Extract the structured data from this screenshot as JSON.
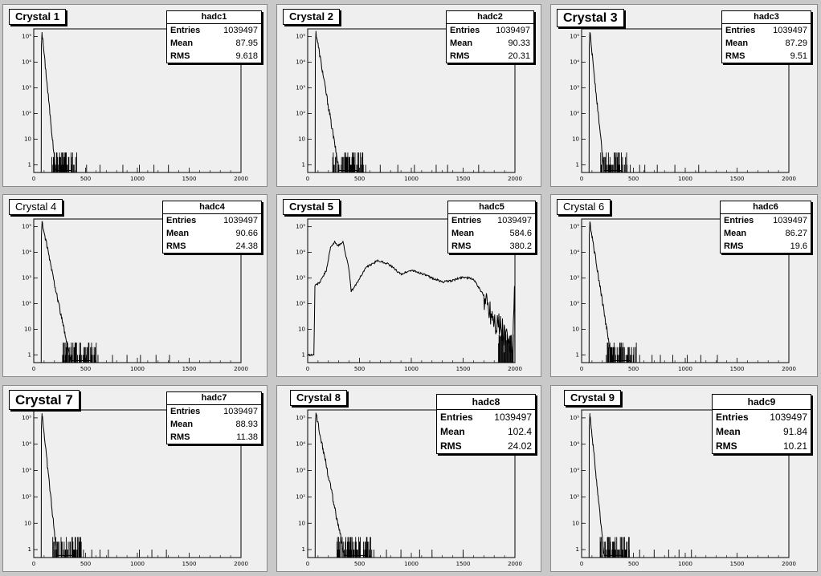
{
  "chart_data": [
    {
      "type": "histogram",
      "title": "Crystal 1",
      "stats": {
        "name": "hadc1",
        "entries_label": "Entries",
        "entries": "1039497",
        "mean_label": "Mean",
        "mean": "87.95",
        "rms_label": "RMS",
        "rms": "9.618"
      },
      "x_range": [
        0,
        2000
      ],
      "y_scale": "log",
      "y_range": [
        0.5,
        200000
      ],
      "x_ticks": [
        "0",
        "500",
        "1000",
        "1500",
        "2000"
      ],
      "y_ticks": [
        "1",
        "10",
        "10²",
        "10³",
        "10⁴",
        "10⁵"
      ],
      "shape": {
        "peak_x": 80,
        "peak": 150000,
        "decay": 10.5,
        "tail_end": 360,
        "outliers": [
          510,
          640,
          860,
          1020,
          1160,
          1300
        ]
      }
    },
    {
      "type": "histogram",
      "title": "Crystal 2",
      "stats": {
        "name": "hadc2",
        "entries_label": "Entries",
        "entries": "1039497",
        "mean_label": "Mean",
        "mean": "90.33",
        "rms_label": "RMS",
        "rms": "20.31"
      },
      "x_range": [
        0,
        2000
      ],
      "y_scale": "log",
      "y_range": [
        0.5,
        200000
      ],
      "x_ticks": [
        "0",
        "500",
        "1000",
        "1500",
        "2000"
      ],
      "y_ticks": [
        "1",
        "10",
        "10²",
        "10³",
        "10⁴",
        "10⁵"
      ],
      "shape": {
        "peak_x": 80,
        "peak": 150000,
        "decay": 18,
        "tail_end": 480,
        "outliers": [
          560,
          700,
          870,
          1030,
          1240,
          1350,
          1650
        ]
      }
    },
    {
      "type": "histogram",
      "title": "Crystal 3",
      "stats": {
        "name": "hadc3",
        "entries_label": "Entries",
        "entries": "1039497",
        "mean_label": "Mean",
        "mean": "87.29",
        "rms_label": "RMS",
        "rms": "9.51"
      },
      "x_range": [
        0,
        2000
      ],
      "y_scale": "log",
      "y_range": [
        0.5,
        200000
      ],
      "x_ticks": [
        "0",
        "500",
        "1000",
        "1500",
        "2000"
      ],
      "y_ticks": [
        "1",
        "10",
        "10²",
        "10³",
        "10⁴",
        "10⁵"
      ],
      "shape": {
        "peak_x": 80,
        "peak": 150000,
        "decay": 11,
        "tail_end": 380,
        "outliers": [
          470,
          560,
          610,
          730,
          900,
          1130
        ]
      }
    },
    {
      "type": "histogram",
      "title": "Crystal 4",
      "stats": {
        "name": "hadc4",
        "entries_label": "Entries",
        "entries": "1039497",
        "mean_label": "Mean",
        "mean": "90.66",
        "rms_label": "RMS",
        "rms": "24.38"
      },
      "x_range": [
        0,
        2000
      ],
      "y_scale": "log",
      "y_range": [
        0.5,
        200000
      ],
      "x_ticks": [
        "0",
        "500",
        "1000",
        "1500",
        "2000"
      ],
      "y_ticks": [
        "1",
        "10",
        "10²",
        "10³",
        "10⁴",
        "10⁵"
      ],
      "shape": {
        "peak_x": 80,
        "peak": 150000,
        "decay": 22,
        "tail_end": 560,
        "outliers": [
          620,
          760,
          900,
          1030,
          1180,
          1310
        ]
      }
    },
    {
      "type": "histogram",
      "title": "Crystal 5",
      "stats": {
        "name": "hadc5",
        "entries_label": "Entries",
        "entries": "1039497",
        "mean_label": "Mean",
        "mean": "584.6",
        "rms_label": "RMS",
        "rms": "380.2"
      },
      "x_range": [
        0,
        2000
      ],
      "y_scale": "log",
      "y_range": [
        0.5,
        200000
      ],
      "x_ticks": [
        "0",
        "500",
        "1000",
        "1500",
        "2000"
      ],
      "y_ticks": [
        "1",
        "10",
        "10²",
        "10³",
        "10⁴",
        "10⁵"
      ],
      "curve": [
        [
          0,
          1
        ],
        [
          60,
          1
        ],
        [
          70,
          500
        ],
        [
          120,
          700
        ],
        [
          180,
          2000
        ],
        [
          220,
          15000
        ],
        [
          260,
          25000
        ],
        [
          300,
          18000
        ],
        [
          340,
          26000
        ],
        [
          400,
          2000
        ],
        [
          420,
          300
        ],
        [
          460,
          500
        ],
        [
          560,
          2500
        ],
        [
          680,
          4800
        ],
        [
          780,
          3500
        ],
        [
          900,
          1400
        ],
        [
          1000,
          2000
        ],
        [
          1100,
          1500
        ],
        [
          1200,
          1000
        ],
        [
          1300,
          700
        ],
        [
          1400,
          800
        ],
        [
          1500,
          1100
        ],
        [
          1600,
          900
        ],
        [
          1700,
          200
        ],
        [
          1800,
          30
        ],
        [
          1900,
          6
        ],
        [
          1960,
          2
        ],
        [
          1980,
          1
        ],
        [
          1995,
          500
        ],
        [
          2000,
          1
        ]
      ]
    },
    {
      "type": "histogram",
      "title": "Crystal 6",
      "stats": {
        "name": "hadc6",
        "entries_label": "Entries",
        "entries": "1039497",
        "mean_label": "Mean",
        "mean": "86.27",
        "rms_label": "RMS",
        "rms": "19.6"
      },
      "x_range": [
        0,
        2000
      ],
      "y_scale": "log",
      "y_range": [
        0.5,
        200000
      ],
      "x_ticks": [
        "0",
        "500",
        "1000",
        "1500",
        "2000"
      ],
      "y_ticks": [
        "1",
        "10",
        "10²",
        "10³",
        "10⁴",
        "10⁵"
      ],
      "shape": {
        "peak_x": 80,
        "peak": 150000,
        "decay": 17,
        "tail_end": 470,
        "outliers": [
          560,
          680,
          760,
          880,
          1020,
          1150,
          1310
        ]
      }
    },
    {
      "type": "histogram",
      "title": "Crystal 7",
      "stats": {
        "name": "hadc7",
        "entries_label": "Entries",
        "entries": "1039497",
        "mean_label": "Mean",
        "mean": "88.93",
        "rms_label": "RMS",
        "rms": "11.38"
      },
      "x_range": [
        0,
        2000
      ],
      "y_scale": "log",
      "y_range": [
        0.5,
        200000
      ],
      "x_ticks": [
        "0",
        "500",
        "1000",
        "1500",
        "2000"
      ],
      "y_ticks": [
        "1",
        "10",
        "10²",
        "10³",
        "10⁴",
        "10⁵"
      ],
      "shape": {
        "peak_x": 80,
        "peak": 150000,
        "decay": 11.5,
        "tail_end": 400,
        "outliers": [
          480,
          560,
          640,
          720,
          1020,
          1140,
          1280
        ]
      }
    },
    {
      "type": "histogram",
      "title": "Crystal 8",
      "stats": {
        "name": "hadc8",
        "entries_label": "Entries",
        "entries": "1039497",
        "mean_label": "Mean",
        "mean": "102.4",
        "rms_label": "RMS",
        "rms": "24.02"
      },
      "x_range": [
        0,
        2000
      ],
      "y_scale": "log",
      "y_range": [
        0.5,
        200000
      ],
      "x_ticks": [
        "0",
        "500",
        "1000",
        "1500",
        "2000"
      ],
      "y_ticks": [
        "1",
        "10",
        "10²",
        "10³",
        "10⁴",
        "10⁵"
      ],
      "shape": {
        "peak_x": 80,
        "peak": 150000,
        "decay": 22,
        "tail_end": 560,
        "outliers": [
          640,
          760,
          900,
          1080,
          1200,
          1500
        ]
      }
    },
    {
      "type": "histogram",
      "title": "Crystal 9",
      "stats": {
        "name": "hadc9",
        "entries_label": "Entries",
        "entries": "1039497",
        "mean_label": "Mean",
        "mean": "91.84",
        "rms_label": "RMS",
        "rms": "10.21"
      },
      "x_range": [
        0,
        2000
      ],
      "y_scale": "log",
      "y_range": [
        0.5,
        200000
      ],
      "x_ticks": [
        "0",
        "500",
        "1000",
        "1500",
        "2000"
      ],
      "y_ticks": [
        "1",
        "10",
        "10²",
        "10³",
        "10⁴",
        "10⁵"
      ],
      "shape": {
        "peak_x": 80,
        "peak": 150000,
        "decay": 11,
        "tail_end": 400,
        "outliers": [
          460,
          560,
          700,
          840,
          940,
          1060
        ]
      }
    }
  ]
}
